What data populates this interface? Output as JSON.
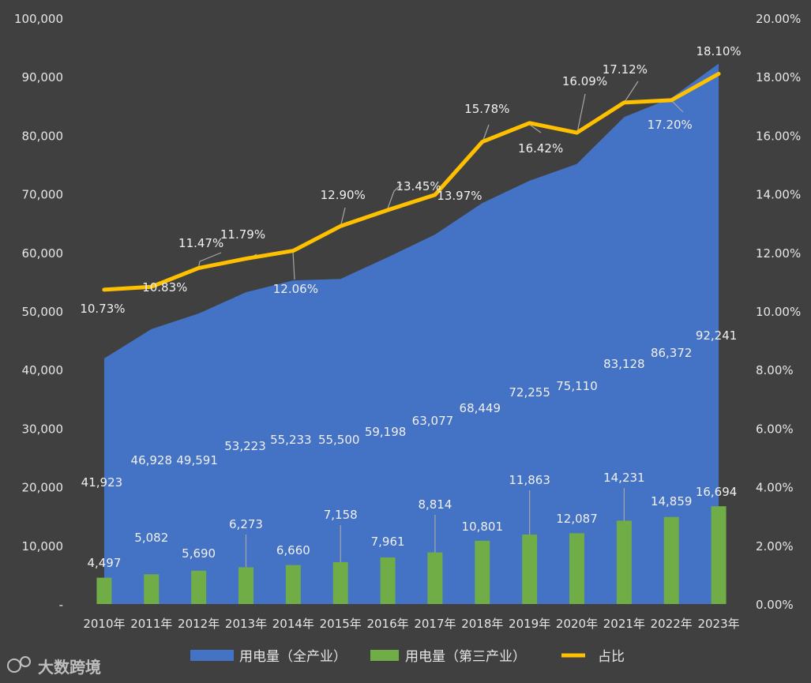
{
  "chart_data": {
    "type": "bar-area-line",
    "categories": [
      "2010年",
      "2011年",
      "2012年",
      "2013年",
      "2014年",
      "2015年",
      "2016年",
      "2017年",
      "2018年",
      "2019年",
      "2020年",
      "2021年",
      "2022年",
      "2023年"
    ],
    "series": [
      {
        "name": "用电量（全产业）",
        "type": "area",
        "color": "#4472c4",
        "axis": "left",
        "values": [
          41923,
          46928,
          49591,
          53223,
          55233,
          55500,
          59198,
          63077,
          68449,
          72255,
          75110,
          83128,
          86372,
          92241
        ],
        "labels": [
          "41,923",
          "46,928",
          "49,591",
          "53,223",
          "55,233",
          "55,500",
          "59,198",
          "63,077",
          "68,449",
          "72,255",
          "75,110",
          "83,128",
          "86,372",
          "92,241"
        ]
      },
      {
        "name": "用电量（第三产业）",
        "type": "bar",
        "color": "#70ad47",
        "axis": "left",
        "values": [
          4497,
          5082,
          5690,
          6273,
          6660,
          7158,
          7961,
          8814,
          10801,
          11863,
          12087,
          14231,
          14859,
          16694
        ],
        "labels": [
          "4,497",
          "5,082",
          "5,690",
          "6,273",
          "6,660",
          "7,158",
          "7,961",
          "8,814",
          "10,801",
          "11,863",
          "12,087",
          "14,231",
          "14,859",
          "16,694"
        ]
      },
      {
        "name": "占比",
        "type": "line",
        "color": "#ffc000",
        "axis": "right",
        "values": [
          10.73,
          10.83,
          11.47,
          11.79,
          12.06,
          12.9,
          13.45,
          13.97,
          15.78,
          16.42,
          16.09,
          17.12,
          17.2,
          18.1
        ],
        "labels": [
          "10.73%",
          "10.83%",
          "11.47%",
          "11.79%",
          "12.06%",
          "12.90%",
          "13.45%",
          "13.97%",
          "15.78%",
          "16.42%",
          "16.09%",
          "17.12%",
          "17.20%",
          "18.10%"
        ]
      }
    ],
    "y_left": {
      "min": 0,
      "max": 100000,
      "ticks": [
        "-",
        "10,000",
        "20,000",
        "30,000",
        "40,000",
        "50,000",
        "60,000",
        "70,000",
        "80,000",
        "90,000",
        "100,000"
      ]
    },
    "y_right": {
      "min": 0,
      "max": 20,
      "ticks": [
        "0.00%",
        "2.00%",
        "4.00%",
        "6.00%",
        "8.00%",
        "10.00%",
        "12.00%",
        "14.00%",
        "16.00%",
        "18.00%",
        "20.00%"
      ]
    },
    "legend_position": "bottom",
    "grid": false
  },
  "watermark": "大数跨境",
  "colors": {
    "background": "#404040",
    "area": "#4472c4",
    "bar": "#70ad47",
    "line": "#ffc000"
  }
}
